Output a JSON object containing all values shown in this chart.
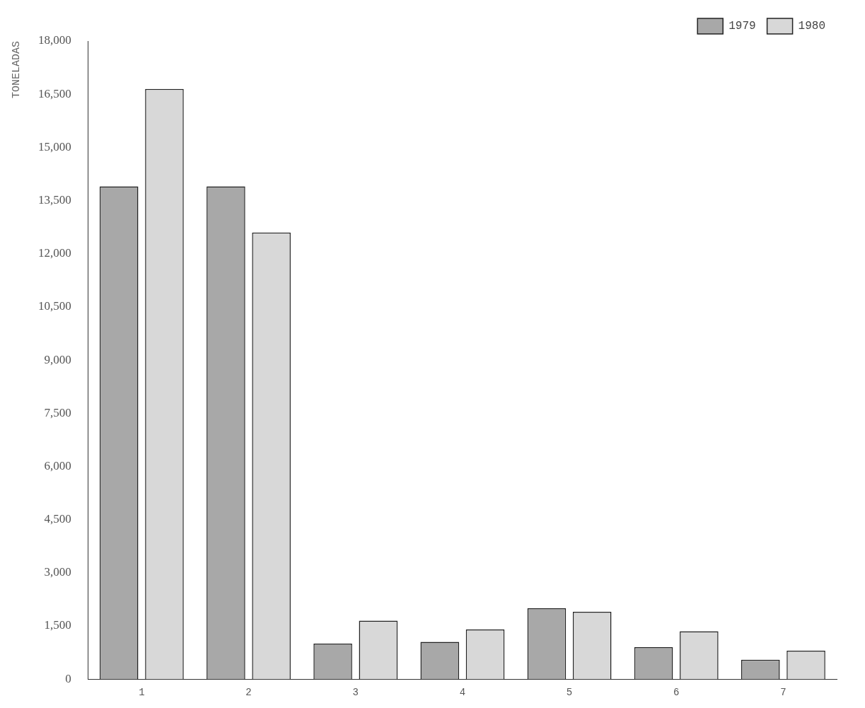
{
  "chart_data": {
    "type": "bar",
    "ylabel": "TONELADAS",
    "categories": [
      "1",
      "2",
      "3",
      "4",
      "5",
      "6",
      "7"
    ],
    "series": [
      {
        "name": "1979",
        "color": "#a8a8a8",
        "values": [
          13900,
          13900,
          1000,
          1050,
          2000,
          900,
          550
        ]
      },
      {
        "name": "1980",
        "color": "#d8d8d8",
        "values": [
          16650,
          12600,
          1650,
          1400,
          1900,
          1350,
          800
        ]
      }
    ],
    "ylim": [
      0,
      18000
    ],
    "yticks": [
      {
        "value": 0,
        "label": "0"
      },
      {
        "value": 1500,
        "label": "1,500"
      },
      {
        "value": 3000,
        "label": "3,000"
      },
      {
        "value": 4500,
        "label": "4,500"
      },
      {
        "value": 6000,
        "label": "6,000"
      },
      {
        "value": 7500,
        "label": "7,500"
      },
      {
        "value": 9000,
        "label": "9,000"
      },
      {
        "value": 10500,
        "label": "10,500"
      },
      {
        "value": 12000,
        "label": "12,000"
      },
      {
        "value": 13500,
        "label": "13,500"
      },
      {
        "value": 15000,
        "label": "15,000"
      },
      {
        "value": 16500,
        "label": "16,500"
      },
      {
        "value": 18000,
        "label": "18,000"
      }
    ],
    "grid": false,
    "legend": "top right"
  }
}
